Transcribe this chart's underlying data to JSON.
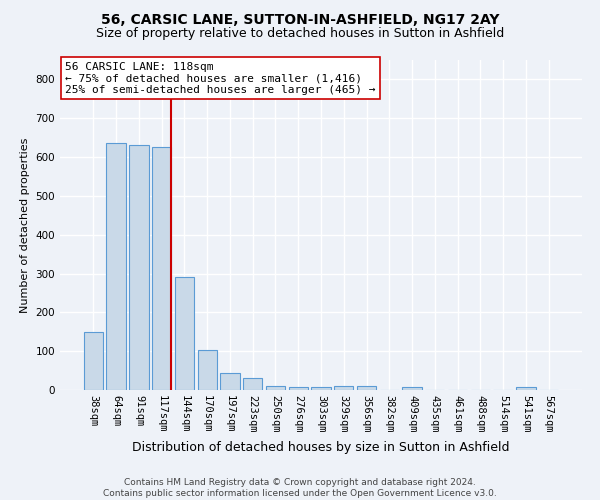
{
  "title": "56, CARSIC LANE, SUTTON-IN-ASHFIELD, NG17 2AY",
  "subtitle": "Size of property relative to detached houses in Sutton in Ashfield",
  "xlabel": "Distribution of detached houses by size in Sutton in Ashfield",
  "ylabel": "Number of detached properties",
  "categories": [
    "38sqm",
    "64sqm",
    "91sqm",
    "117sqm",
    "144sqm",
    "170sqm",
    "197sqm",
    "223sqm",
    "250sqm",
    "276sqm",
    "303sqm",
    "329sqm",
    "356sqm",
    "382sqm",
    "409sqm",
    "435sqm",
    "461sqm",
    "488sqm",
    "514sqm",
    "541sqm",
    "567sqm"
  ],
  "values": [
    150,
    635,
    630,
    625,
    290,
    103,
    45,
    30,
    10,
    8,
    8,
    10,
    10,
    0,
    8,
    0,
    0,
    0,
    0,
    8,
    0
  ],
  "bar_color": "#c9d9e8",
  "bar_edge_color": "#5b9bd5",
  "background_color": "#eef2f8",
  "grid_color": "#ffffff",
  "red_line_index": 3,
  "red_line_color": "#cc0000",
  "annotation_line1": "56 CARSIC LANE: 118sqm",
  "annotation_line2": "← 75% of detached houses are smaller (1,416)",
  "annotation_line3": "25% of semi-detached houses are larger (465) →",
  "annotation_box_color": "#ffffff",
  "annotation_box_edge": "#cc0000",
  "ylim": [
    0,
    850
  ],
  "yticks": [
    0,
    100,
    200,
    300,
    400,
    500,
    600,
    700,
    800
  ],
  "footer": "Contains HM Land Registry data © Crown copyright and database right 2024.\nContains public sector information licensed under the Open Government Licence v3.0.",
  "title_fontsize": 10,
  "subtitle_fontsize": 9,
  "xlabel_fontsize": 9,
  "ylabel_fontsize": 8,
  "tick_fontsize": 7.5,
  "annot_fontsize": 8
}
